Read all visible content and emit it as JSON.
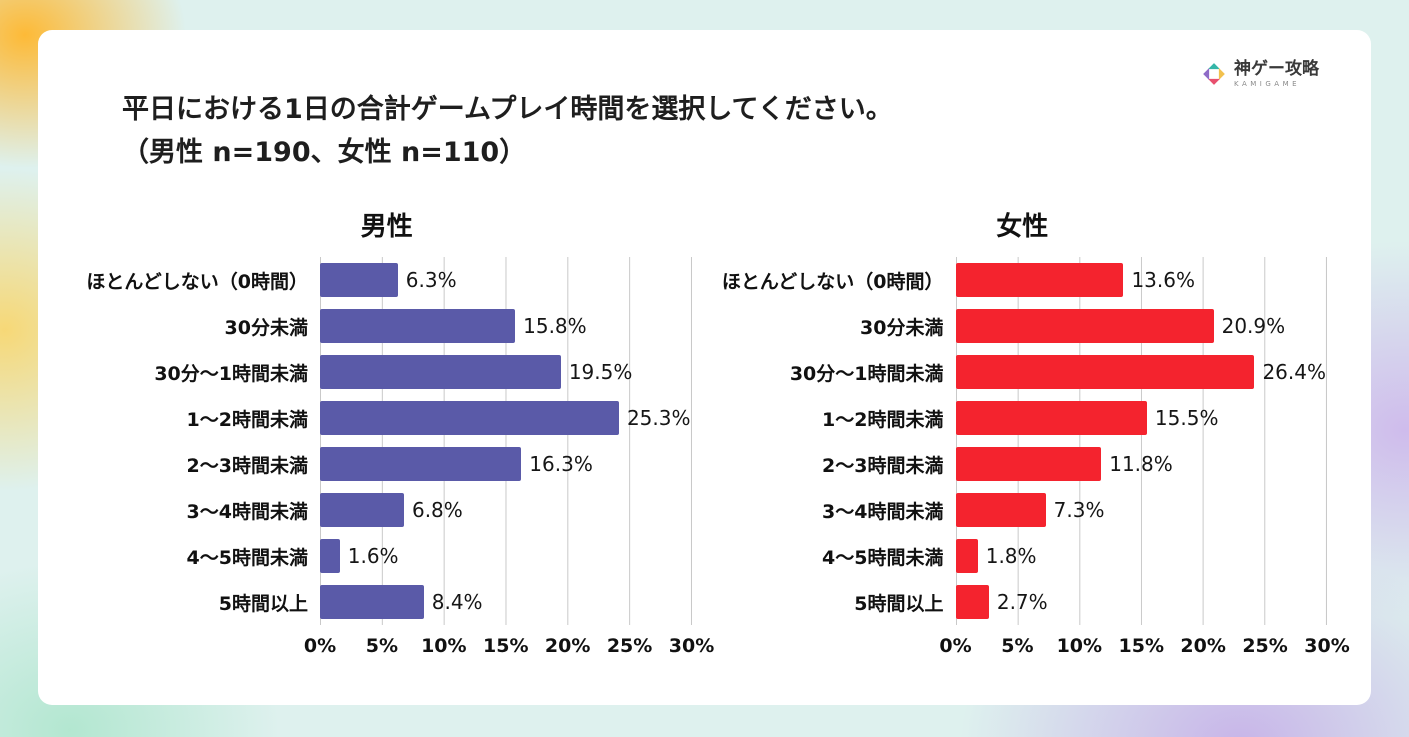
{
  "logo": {
    "name": "神ゲー攻略",
    "subtitle": "KAMIGAME"
  },
  "title": {
    "line1": "平日における1日の合計ゲームプレイ時間を選択してください。",
    "line2": "（男性 n=190、女性 n=110）"
  },
  "chart_data": {
    "type": "bar",
    "orientation": "horizontal",
    "title": "平日における1日の合計ゲームプレイ時間を選択してください。（男性 n=190、女性 n=110）",
    "categories": [
      "ほとんどしない（0時間）",
      "30分未満",
      "30分〜1時間未満",
      "1〜2時間未満",
      "2〜3時間未満",
      "3〜4時間未満",
      "4〜5時間未満",
      "5時間以上"
    ],
    "series": [
      {
        "name": "男性",
        "n": 190,
        "color": "#5a5aa8",
        "values": [
          6.3,
          15.8,
          19.5,
          25.3,
          16.3,
          6.8,
          1.6,
          8.4
        ]
      },
      {
        "name": "女性",
        "n": 110,
        "color": "#f4232e",
        "values": [
          13.6,
          20.9,
          26.4,
          15.5,
          11.8,
          7.3,
          1.8,
          2.7
        ]
      }
    ],
    "x_ticks": [
      "0%",
      "5%",
      "10%",
      "15%",
      "20%",
      "25%",
      "30%"
    ],
    "xlim": [
      0,
      30
    ],
    "grid": "vertical",
    "value_suffix": "%",
    "legend_position": "none"
  }
}
